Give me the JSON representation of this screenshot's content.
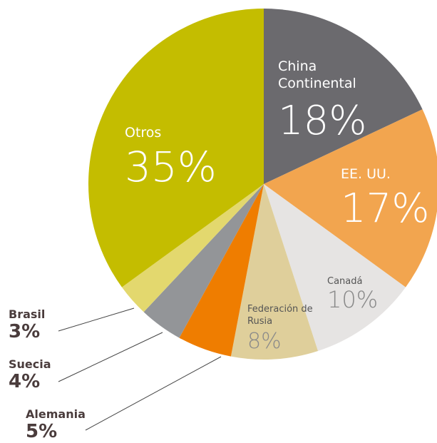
{
  "chart_data": {
    "type": "pie",
    "categories": [
      "China Continental",
      "EE. UU.",
      "Canadá",
      "Federación de Rusia",
      "Alemania",
      "Suecia",
      "Brasil",
      "Otros"
    ],
    "values": [
      18,
      17,
      10,
      8,
      5,
      4,
      3,
      35
    ],
    "value_labels": [
      "18%",
      "17%",
      "10%",
      "8%",
      "5%",
      "4%",
      "3%",
      "35%"
    ],
    "colors": [
      "#6b6a6e",
      "#f2a54f",
      "#e6e4e3",
      "#dfcf9b",
      "#ef7d00",
      "#939598",
      "#e3d86e",
      "#c4bd00"
    ]
  }
}
